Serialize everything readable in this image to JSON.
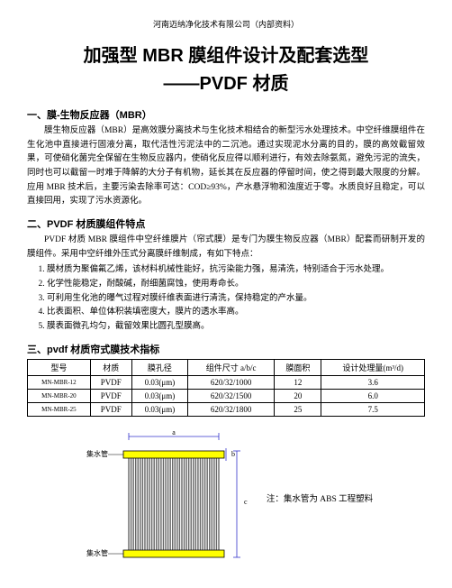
{
  "header": {
    "company": "河南迈纳净化技术有限公司（内部资料）"
  },
  "title": {
    "line1": "加强型 MBR 膜组件设计及配套选型",
    "line2": "——PVDF 材质"
  },
  "section1": {
    "heading": "一、膜-生物反应器（MBR）",
    "p1": "膜生物反应器（MBR）是高效膜分离技术与生化技术相结合的新型污水处理技术。中空纤维膜组件在生化池中直接进行固液分离，取代活性污泥法中的二沉池。通过实现泥水分离的目的，膜的高效截留效果，可使硝化菌完全保留在生物反应器内，使硝化反应得以顺利进行，有效去除氨氮，避免污泥的流失，同时也可以截留一时难于降解的大分子有机物，延长其在反应器的停留时间，使之得到最大限度的分解。应用 MBR 技术后，主要污染去除率可达：COD≥93%，产水悬浮物和浊度近于零。水质良好且稳定，可以直接回用，实现了污水资源化。"
  },
  "section2": {
    "heading": "二、PVDF 材质膜组件特点",
    "intro1": "PVDF 材质 MBR 膜组件中空纤维膜片（帘式膜）是专门为膜生物反应器（MBR）配套而研制开发的膜组件。采用中空纤维外压式分离膜纤维制成，有如下特点：",
    "items": [
      "膜材质为聚偏氟乙烯，该材料机械性能好，抗污染能力强，易清洗，特别适合于污水处理。",
      "化学性能稳定，耐酸碱，耐细菌腐蚀，使用寿命长。",
      "可利用生化池的曝气过程对膜纤维表面进行清洗，保持稳定的产水量。",
      "比表面积、单位体积装填密度大，膜片的透水率高。",
      "膜表面微孔均匀，截留效果比圆孔型膜高。"
    ]
  },
  "section3": {
    "heading": "三、pvdf 材质帘式膜技术指标",
    "columns": [
      "型号",
      "材质",
      "膜孔径",
      "组件尺寸 a/b/c",
      "膜面积",
      "设计处理量(m³/d)"
    ],
    "rows": [
      [
        "MN-MBR-12",
        "PVDF",
        "0.03(μm)",
        "620/32/1000",
        "12",
        "3.6"
      ],
      [
        "MN-MBR-20",
        "PVDF",
        "0.03(μm)",
        "620/32/1500",
        "20",
        "6.0"
      ],
      [
        "MN-MBR-25",
        "PVDF",
        "0.03(μm)",
        "620/32/1800",
        "25",
        "7.5"
      ]
    ]
  },
  "diagram": {
    "label_top": "集水管",
    "label_bottom": "集水管",
    "dim_a": "a",
    "dim_b": "b",
    "dim_c": "c",
    "note": "注：集水管为 ABS 工程塑料",
    "colors": {
      "pipe": "#ffff00",
      "pipe_stroke": "#000000",
      "fiber": "#666666",
      "dim_line": "#3333cc",
      "bg": "#ffffff"
    }
  }
}
